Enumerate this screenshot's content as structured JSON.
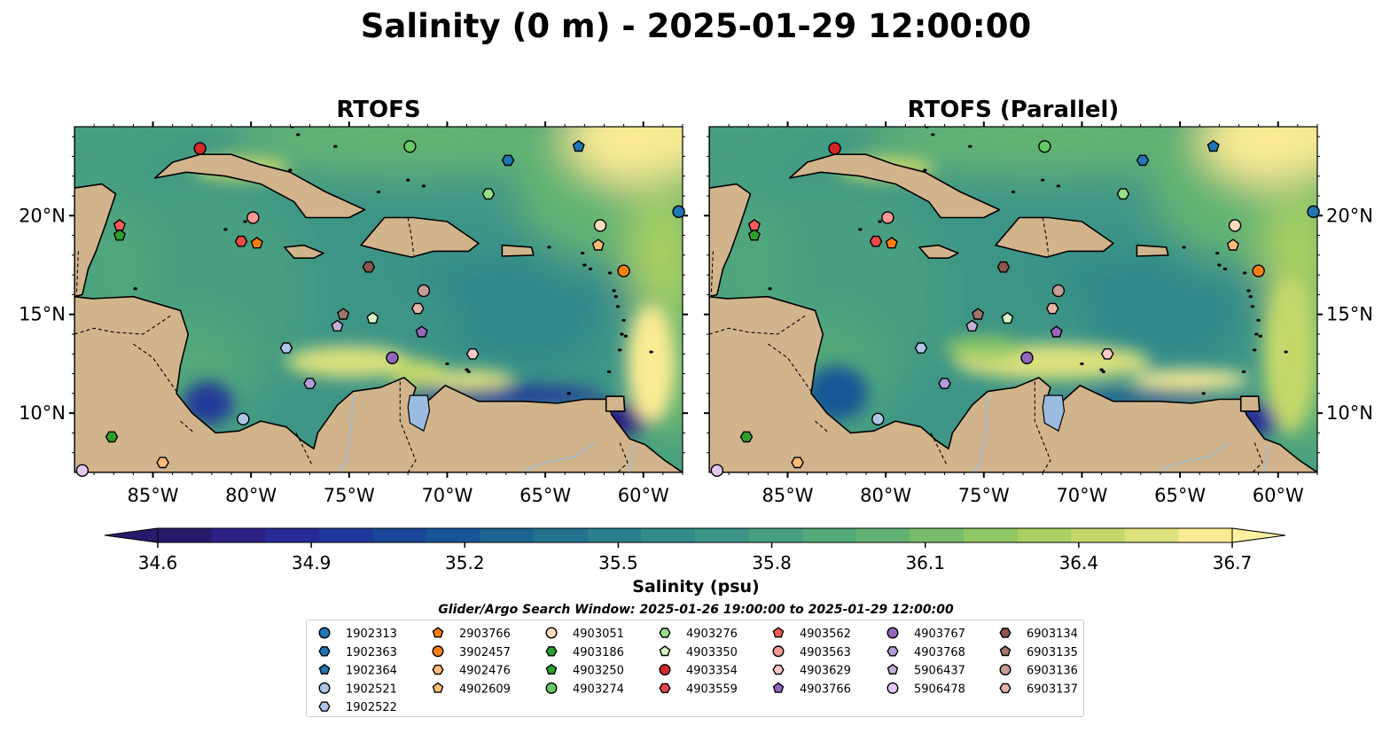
{
  "figure": {
    "title": "Salinity (0 m) - 2025-01-29 12:00:00"
  },
  "chart_data": {
    "type": "heatmap",
    "panels": [
      {
        "title": "RTOFS",
        "ylabels_side": "left"
      },
      {
        "title": "RTOFS (Parallel)",
        "ylabels_side": "right"
      }
    ],
    "xlim": [
      -89.0,
      -58.0
    ],
    "ylim": [
      7.0,
      24.5
    ],
    "xticks": [
      -85,
      -80,
      -75,
      -70,
      -65,
      -60
    ],
    "xtick_labels": [
      "85°W",
      "80°W",
      "75°W",
      "70°W",
      "65°W",
      "60°W"
    ],
    "yticks": [
      10,
      15,
      20
    ],
    "ytick_labels": [
      "10°N",
      "15°N",
      "20°N"
    ],
    "colorbar": {
      "label": "Salinity (psu)",
      "min": 34.6,
      "max": 36.7,
      "extend": "both",
      "ticks": [
        34.6,
        34.9,
        35.2,
        35.5,
        35.8,
        36.1,
        36.4,
        36.7
      ],
      "tick_labels": [
        "34.6",
        "34.9",
        "35.2",
        "35.5",
        "35.8",
        "36.1",
        "36.4",
        "36.7"
      ],
      "colors": [
        "#2a1a6b",
        "#2c1f86",
        "#282a96",
        "#20389a",
        "#1a4799",
        "#175696",
        "#1c6592",
        "#23728f",
        "#2b7f8d",
        "#338a8a",
        "#3c9586",
        "#469f80",
        "#52a97a",
        "#62b373",
        "#77bd6b",
        "#8fc765",
        "#a9d060",
        "#c4d86a",
        "#dde27d",
        "#fbeb94"
      ]
    },
    "search_window": "Glider/Argo Search Window: 2025-01-26 19:00:00 to 2025-01-29 12:00:00",
    "legend_columns": [
      [
        {
          "id": "1902313",
          "marker": "circle",
          "color": "#1f77b4"
        },
        {
          "id": "1902363",
          "marker": "hexagon",
          "color": "#1f77b4"
        },
        {
          "id": "1902364",
          "marker": "pentagon",
          "color": "#1f77b4"
        },
        {
          "id": "1902521",
          "marker": "circle",
          "color": "#aec7e8"
        },
        {
          "id": "1902522",
          "marker": "hexagon",
          "color": "#aec7e8"
        }
      ],
      [
        {
          "id": "2903766",
          "marker": "pentagon",
          "color": "#ff7f0e"
        },
        {
          "id": "3902457",
          "marker": "circle",
          "color": "#ff7f0e"
        },
        {
          "id": "4902476",
          "marker": "hexagon",
          "color": "#ffbb78"
        },
        {
          "id": "4902609",
          "marker": "pentagon",
          "color": "#ffbb78"
        }
      ],
      [
        {
          "id": "4903051",
          "marker": "circle",
          "color": "#ffdcc0"
        },
        {
          "id": "4903186",
          "marker": "hexagon",
          "color": "#2ca02c"
        },
        {
          "id": "4903250",
          "marker": "pentagon",
          "color": "#2ca02c"
        },
        {
          "id": "4903274",
          "marker": "circle",
          "color": "#67c867"
        }
      ],
      [
        {
          "id": "4903276",
          "marker": "hexagon",
          "color": "#98df8a"
        },
        {
          "id": "4903350",
          "marker": "pentagon",
          "color": "#d3f5c8"
        },
        {
          "id": "4903354",
          "marker": "circle",
          "color": "#d62728"
        },
        {
          "id": "4903559",
          "marker": "hexagon",
          "color": "#e84848"
        }
      ],
      [
        {
          "id": "4903562",
          "marker": "pentagon",
          "color": "#ff5a5a"
        },
        {
          "id": "4903563",
          "marker": "circle",
          "color": "#ff9896"
        },
        {
          "id": "4903629",
          "marker": "hexagon",
          "color": "#ffc8c8"
        },
        {
          "id": "4903766",
          "marker": "pentagon",
          "color": "#9467bd"
        }
      ],
      [
        {
          "id": "4903767",
          "marker": "circle",
          "color": "#9467bd"
        },
        {
          "id": "4903768",
          "marker": "hexagon",
          "color": "#b39ddb"
        },
        {
          "id": "5906437",
          "marker": "pentagon",
          "color": "#c5b0d5"
        },
        {
          "id": "5906478",
          "marker": "circle",
          "color": "#e2c8f5"
        }
      ],
      [
        {
          "id": "6903134",
          "marker": "hexagon",
          "color": "#8c564b"
        },
        {
          "id": "6903135",
          "marker": "pentagon",
          "color": "#a0766a"
        },
        {
          "id": "6903136",
          "marker": "circle",
          "color": "#c49c94"
        },
        {
          "id": "6903137",
          "marker": "hexagon",
          "color": "#e6b5a6"
        }
      ]
    ],
    "floats": [
      {
        "id": "1902313",
        "lon": -58.2,
        "lat": 20.2
      },
      {
        "id": "1902363",
        "lon": -66.9,
        "lat": 22.8
      },
      {
        "id": "1902364",
        "lon": -63.3,
        "lat": 23.5
      },
      {
        "id": "1902521",
        "lon": -80.4,
        "lat": 9.7
      },
      {
        "id": "1902522",
        "lon": -78.2,
        "lat": 13.3
      },
      {
        "id": "2903766",
        "lon": -79.7,
        "lat": 18.6
      },
      {
        "id": "3902457",
        "lon": -61.0,
        "lat": 17.2
      },
      {
        "id": "4902476",
        "lon": -84.5,
        "lat": 7.5
      },
      {
        "id": "4902609",
        "lon": -62.3,
        "lat": 18.5
      },
      {
        "id": "4903051",
        "lon": -62.2,
        "lat": 19.5
      },
      {
        "id": "4903186",
        "lon": -87.1,
        "lat": 8.8
      },
      {
        "id": "4903250",
        "lon": -86.7,
        "lat": 19.0
      },
      {
        "id": "4903274",
        "lon": -71.9,
        "lat": 23.5
      },
      {
        "id": "4903276",
        "lon": -67.9,
        "lat": 21.1
      },
      {
        "id": "4903350",
        "lon": -73.8,
        "lat": 14.8
      },
      {
        "id": "4903354",
        "lon": -82.6,
        "lat": 23.4
      },
      {
        "id": "4903559",
        "lon": -80.5,
        "lat": 18.7
      },
      {
        "id": "4903562",
        "lon": -86.7,
        "lat": 19.5
      },
      {
        "id": "4903563",
        "lon": -79.9,
        "lat": 19.9
      },
      {
        "id": "4903629",
        "lon": -68.7,
        "lat": 13.0
      },
      {
        "id": "4903766",
        "lon": -71.3,
        "lat": 14.1
      },
      {
        "id": "4903767",
        "lon": -72.8,
        "lat": 12.8
      },
      {
        "id": "4903768",
        "lon": -77.0,
        "lat": 11.5
      },
      {
        "id": "5906437",
        "lon": -75.6,
        "lat": 14.4
      },
      {
        "id": "5906478",
        "lon": -88.6,
        "lat": 7.1
      },
      {
        "id": "6903134",
        "lon": -74.0,
        "lat": 17.4
      },
      {
        "id": "6903135",
        "lon": -75.3,
        "lat": 15.0
      },
      {
        "id": "6903136",
        "lon": -71.2,
        "lat": 16.2
      },
      {
        "id": "6903137",
        "lon": -71.5,
        "lat": 15.3
      }
    ]
  },
  "map_colors": {
    "land": "#d2b48c",
    "lakes": "#9bbbe0",
    "rivers": "#a3bcd6"
  }
}
